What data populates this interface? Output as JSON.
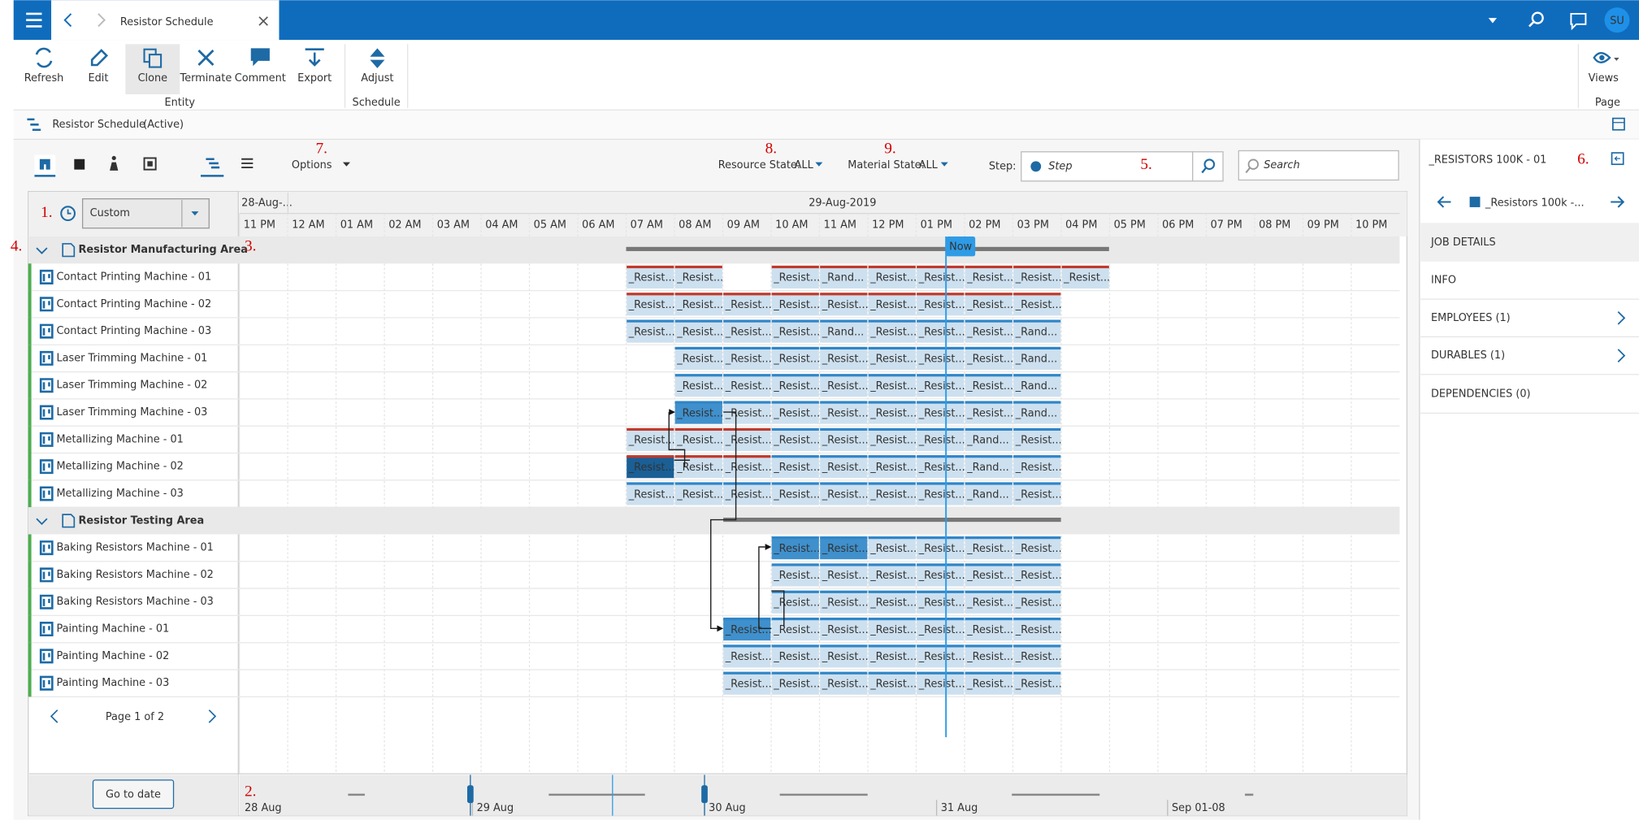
{
  "app_bar": {
    "tab_title": "Resistor Schedule",
    "avatar": "SU"
  },
  "toolbar": {
    "groups": [
      {
        "label": "Entity",
        "buttons": [
          "Refresh",
          "Edit",
          "Clone",
          "Terminate",
          "Comment",
          "Export"
        ]
      },
      {
        "label": "Schedule",
        "buttons": [
          "Adjust"
        ]
      },
      {
        "label": "Page",
        "buttons": [
          "Views"
        ]
      }
    ]
  },
  "breadcrumb": {
    "title": "Resistor Schedule",
    "status": "(Active)"
  },
  "filters": {
    "options": "Options",
    "resource_state": "Resource State:",
    "resource_value": "ALL",
    "material_state": "Material State:",
    "material_value": "ALL",
    "step_label": "Step:",
    "step_placeholder": "Step",
    "search_placeholder": "Search"
  },
  "markers": [
    "1.",
    "2.",
    "3.",
    "4.",
    "5.",
    "6.",
    "7.",
    "8.",
    "9."
  ],
  "timeline": {
    "range": "Custom",
    "dates": [
      "28-Aug-...",
      "29-Aug-2019"
    ],
    "hours": [
      "11 PM",
      "12 AM",
      "01 AM",
      "02 AM",
      "03 AM",
      "04 AM",
      "05 AM",
      "06 AM",
      "07 AM",
      "08 AM",
      "09 AM",
      "10 AM",
      "11 AM",
      "12 PM",
      "01 PM",
      "02 PM",
      "03 PM",
      "04 PM",
      "05 PM",
      "06 PM",
      "07 PM",
      "08 PM",
      "09 PM",
      "10 PM"
    ],
    "now": "Now"
  },
  "groups": [
    {
      "name": "Resistor Manufacturing Area",
      "resources": [
        {
          "name": "Contact Printing Machine - 01",
          "jobs": [
            null,
            null,
            null,
            null,
            null,
            null,
            null,
            null,
            "_Resist...",
            "_Resist...",
            null,
            "_Resist...",
            "_Rand...",
            "_Resist...",
            "_Resist...",
            "_Resist...",
            "_Resist...",
            "_Resist...",
            null,
            null,
            null,
            null,
            null,
            null
          ]
        },
        {
          "name": "Contact Printing Machine - 02",
          "jobs": [
            null,
            null,
            null,
            null,
            null,
            null,
            null,
            null,
            "_Resist...",
            "_Resist...",
            "_Resist...",
            "_Resist...",
            "_Resist...",
            "_Resist...",
            "_Resist...",
            "_Resist...",
            "_Resist...",
            null,
            null,
            null,
            null,
            null,
            null,
            null
          ]
        },
        {
          "name": "Contact Printing Machine - 03",
          "jobs": [
            null,
            null,
            null,
            null,
            null,
            null,
            null,
            null,
            "_Resist...",
            "_Resist...",
            "_Resist...",
            "_Resist...",
            "_Rand...",
            "_Resist...",
            "_Resist...",
            "_Resist...",
            "_Rand...",
            null,
            null,
            null,
            null,
            null,
            null,
            null
          ]
        },
        {
          "name": "Laser Trimming Machine - 01",
          "jobs": [
            null,
            null,
            null,
            null,
            null,
            null,
            null,
            null,
            null,
            "_Resist...",
            "_Resist...",
            "_Resist...",
            "_Resist...",
            "_Resist...",
            "_Resist...",
            "_Resist...",
            "_Rand...",
            null,
            null,
            null,
            null,
            null,
            null,
            null
          ]
        },
        {
          "name": "Laser Trimming Machine - 02",
          "jobs": [
            null,
            null,
            null,
            null,
            null,
            null,
            null,
            null,
            null,
            "_Resist...",
            "_Resist...",
            "_Resist...",
            "_Resist...",
            "_Resist...",
            "_Resist...",
            "_Resist...",
            "_Rand...",
            null,
            null,
            null,
            null,
            null,
            null,
            null
          ]
        },
        {
          "name": "Laser Trimming Machine - 03",
          "jobs": [
            null,
            null,
            null,
            null,
            null,
            null,
            null,
            null,
            null,
            "_Resist...",
            "_Resist...",
            "_Resist...",
            "_Resist...",
            "_Resist...",
            "_Resist...",
            "_Resist...",
            "_Rand...",
            null,
            null,
            null,
            null,
            null,
            null,
            null
          ]
        },
        {
          "name": "Metallizing Machine - 01",
          "jobs": [
            null,
            null,
            null,
            null,
            null,
            null,
            null,
            null,
            "_Resist...",
            "_Resist...",
            "_Resist...",
            "_Resist...",
            "_Resist...",
            "_Resist...",
            "_Resist...",
            "_Rand...",
            "_Resist...",
            null,
            null,
            null,
            null,
            null,
            null,
            null
          ]
        },
        {
          "name": "Metallizing Machine - 02",
          "jobs": [
            null,
            null,
            null,
            null,
            null,
            null,
            null,
            null,
            "_Resist...",
            "_Resist...",
            "_Resist...",
            "_Resist...",
            "_Resist...",
            "_Resist...",
            "_Resist...",
            "_Rand...",
            "_Resist...",
            null,
            null,
            null,
            null,
            null,
            null,
            null
          ]
        },
        {
          "name": "Metallizing Machine - 03",
          "jobs": [
            null,
            null,
            null,
            null,
            null,
            null,
            null,
            null,
            "_Resist...",
            "_Resist...",
            "_Resist...",
            "_Resist...",
            "_Resist...",
            "_Resist...",
            "_Resist...",
            "_Rand...",
            "_Resist...",
            null,
            null,
            null,
            null,
            null,
            null,
            null
          ]
        }
      ]
    },
    {
      "name": "Resistor Testing Area",
      "resources": [
        {
          "name": "Baking Resistors Machine - 01",
          "jobs": [
            null,
            null,
            null,
            null,
            null,
            null,
            null,
            null,
            null,
            null,
            null,
            "_Resist...",
            "_Resist...",
            "_Resist...",
            "_Resist...",
            "_Resist...",
            "_Resist...",
            null,
            null,
            null,
            null,
            null,
            null,
            null
          ]
        },
        {
          "name": "Baking Resistors Machine - 02",
          "jobs": [
            null,
            null,
            null,
            null,
            null,
            null,
            null,
            null,
            null,
            null,
            null,
            "_Resist...",
            "_Resist...",
            "_Resist...",
            "_Resist...",
            "_Resist...",
            "_Resist...",
            null,
            null,
            null,
            null,
            null,
            null,
            null
          ]
        },
        {
          "name": "Baking Resistors Machine - 03",
          "jobs": [
            null,
            null,
            null,
            null,
            null,
            null,
            null,
            null,
            null,
            null,
            null,
            "_Resist...",
            "_Resist...",
            "_Resist...",
            "_Resist...",
            "_Resist...",
            "_Resist...",
            null,
            null,
            null,
            null,
            null,
            null,
            null
          ]
        },
        {
          "name": "Painting Machine - 01",
          "jobs": [
            null,
            null,
            null,
            null,
            null,
            null,
            null,
            null,
            null,
            null,
            "_Resist...",
            "_Resist...",
            "_Resist...",
            "_Resist...",
            "_Resist...",
            "_Resist...",
            "_Resist...",
            null,
            null,
            null,
            null,
            null,
            null,
            null
          ]
        },
        {
          "name": "Painting Machine - 02",
          "jobs": [
            null,
            null,
            null,
            null,
            null,
            null,
            null,
            null,
            null,
            null,
            "_Resist...",
            "_Resist...",
            "_Resist...",
            "_Resist...",
            "_Resist...",
            "_Resist...",
            "_Resist...",
            null,
            null,
            null,
            null,
            null,
            null,
            null
          ]
        },
        {
          "name": "Painting Machine - 03",
          "jobs": [
            null,
            null,
            null,
            null,
            null,
            null,
            null,
            null,
            null,
            null,
            "_Resist...",
            "_Resist...",
            "_Resist...",
            "_Resist...",
            "_Resist...",
            "_Resist...",
            "_Resist...",
            null,
            null,
            null,
            null,
            null,
            null,
            null
          ]
        }
      ]
    }
  ],
  "pagination": {
    "page": "Page 1 of 2"
  },
  "navigator": {
    "button": "Go to date",
    "dates": [
      "28 Aug",
      "29 Aug",
      "30 Aug",
      "31 Aug",
      "Sep 01-08"
    ]
  },
  "details": {
    "title": "_RESISTORS 100K - 01",
    "job": "_Resistors 100k -...",
    "section": "JOB DETAILS",
    "items": [
      "INFO",
      "EMPLOYEES (1)",
      "DURABLES (1)",
      "DEPENDENCIES (0)"
    ]
  }
}
